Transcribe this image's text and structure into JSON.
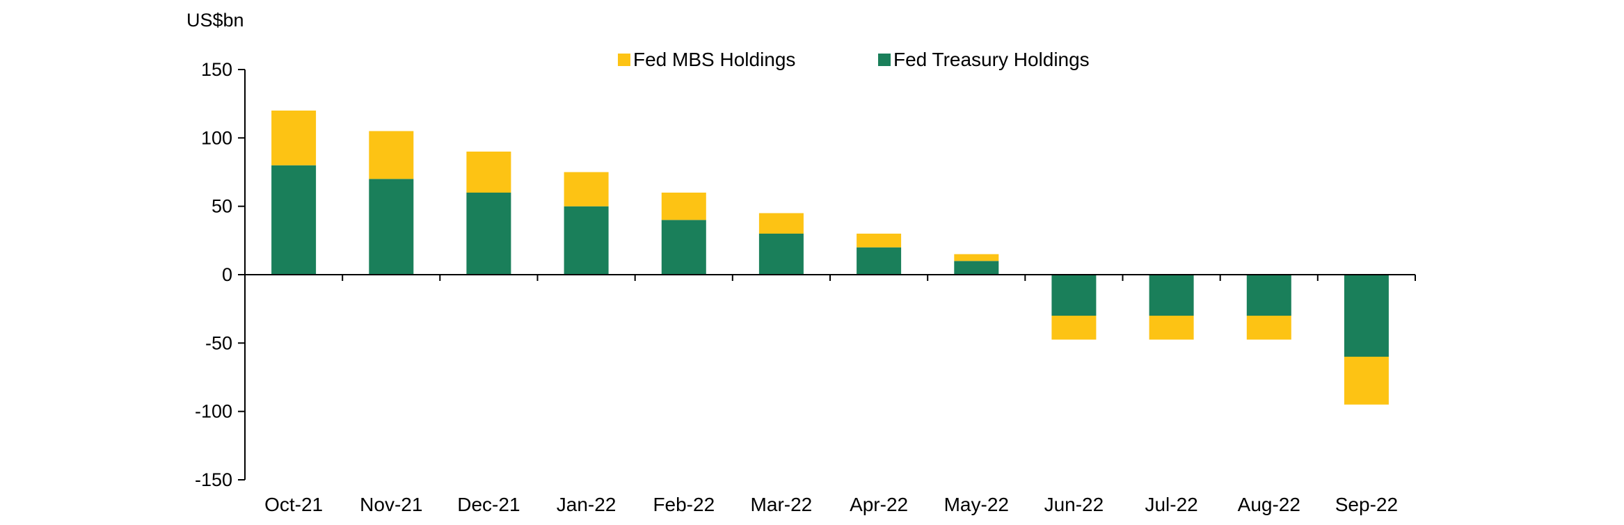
{
  "chart_data": {
    "type": "bar",
    "stacked": true,
    "unit_label": "US$bn",
    "title": "",
    "xlabel": "",
    "ylabel": "",
    "categories": [
      "Oct-21",
      "Nov-21",
      "Dec-21",
      "Jan-22",
      "Feb-22",
      "Mar-22",
      "Apr-22",
      "May-22",
      "Jun-22",
      "Jul-22",
      "Aug-22",
      "Sep-22"
    ],
    "series": [
      {
        "name": "Fed Treasury Holdings",
        "color": "#1a7f5a",
        "values": [
          80,
          70,
          60,
          50,
          40,
          30,
          20,
          10,
          -30,
          -30,
          -30,
          -60
        ]
      },
      {
        "name": "Fed MBS Holdings",
        "color": "#fdc314",
        "values": [
          40,
          35,
          30,
          25,
          20,
          15,
          10,
          5,
          -17.5,
          -17.5,
          -17.5,
          -35
        ]
      }
    ],
    "legend_order": [
      "Fed MBS Holdings",
      "Fed Treasury Holdings"
    ],
    "ylim": [
      -150,
      150
    ],
    "yticks": [
      150,
      100,
      50,
      0,
      -50,
      -100,
      -150
    ],
    "grid": false,
    "legend_position": "top-center"
  }
}
